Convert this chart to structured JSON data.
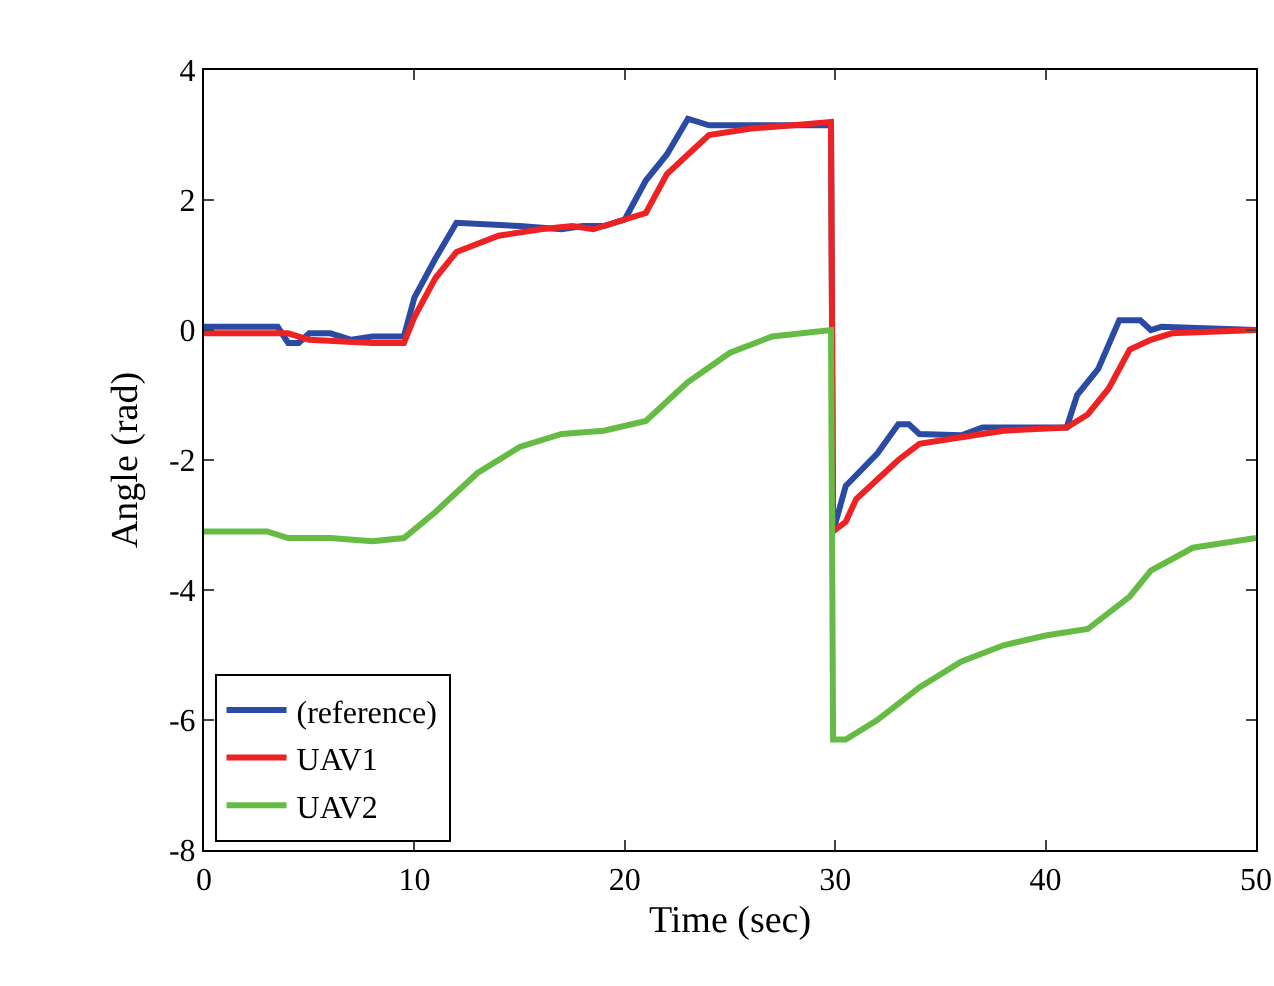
{
  "chart_data": {
    "type": "line",
    "xlabel": "Time (sec)",
    "ylabel": "Angle (rad)",
    "xlim": [
      0,
      50
    ],
    "xticks": [
      0,
      10,
      20,
      30,
      40,
      50
    ],
    "ylim": [
      -8,
      4
    ],
    "yticks": [
      -8,
      -6,
      -4,
      -2,
      0,
      2,
      4
    ],
    "grid": false,
    "legend": "bottom left",
    "line_style": "solid",
    "marker": "none",
    "series": [
      {
        "name": "(reference)",
        "color": "#2b4aa3",
        "x": [
          0,
          3.5,
          4,
          4.5,
          5,
          6,
          7,
          8,
          9.5,
          10,
          11,
          12,
          15,
          17,
          18,
          19,
          20,
          21,
          22,
          23,
          23.5,
          24,
          27,
          29.8,
          29.9,
          30.5,
          32,
          33,
          33.5,
          34,
          36,
          37,
          40,
          41,
          41.5,
          42.5,
          43.5,
          44.5,
          45,
          45.5,
          50
        ],
        "values": [
          0.05,
          0.05,
          -0.2,
          -0.2,
          -0.05,
          -0.05,
          -0.15,
          -0.1,
          -0.1,
          0.5,
          1.1,
          1.65,
          1.6,
          1.55,
          1.6,
          1.6,
          1.7,
          2.3,
          2.7,
          3.25,
          3.2,
          3.15,
          3.15,
          3.15,
          -3.1,
          -2.4,
          -1.9,
          -1.45,
          -1.45,
          -1.6,
          -1.62,
          -1.5,
          -1.5,
          -1.5,
          -1.0,
          -0.6,
          0.15,
          0.15,
          0.0,
          0.05,
          0.0
        ]
      },
      {
        "name": "UAV1",
        "color": "#ee2222",
        "x": [
          0,
          4,
          5,
          8,
          9.5,
          10,
          11,
          12,
          14,
          16,
          17.5,
          18.5,
          20,
          21,
          22,
          23,
          24,
          26,
          28,
          29.8,
          29.9,
          30.5,
          31,
          33,
          34,
          36,
          38,
          41,
          42,
          43,
          44,
          45,
          46,
          50
        ],
        "values": [
          -0.05,
          -0.05,
          -0.15,
          -0.2,
          -0.2,
          0.2,
          0.8,
          1.2,
          1.45,
          1.55,
          1.6,
          1.55,
          1.7,
          1.8,
          2.4,
          2.7,
          3.0,
          3.1,
          3.15,
          3.2,
          -3.1,
          -2.95,
          -2.6,
          -2.0,
          -1.75,
          -1.65,
          -1.55,
          -1.5,
          -1.3,
          -0.9,
          -0.3,
          -0.15,
          -0.05,
          0.0
        ]
      },
      {
        "name": "UAV2",
        "color": "#66bb44",
        "x": [
          0,
          3,
          4,
          6,
          8,
          9.5,
          11,
          13,
          15,
          17,
          19,
          21,
          23,
          25,
          27,
          29.8,
          29.9,
          30.5,
          32,
          34,
          36,
          38,
          40,
          42,
          44,
          45,
          47,
          50
        ],
        "values": [
          -3.1,
          -3.1,
          -3.2,
          -3.2,
          -3.25,
          -3.2,
          -2.8,
          -2.2,
          -1.8,
          -1.6,
          -1.55,
          -1.4,
          -0.8,
          -0.35,
          -0.1,
          0.0,
          -6.3,
          -6.3,
          -6.0,
          -5.5,
          -5.1,
          -4.85,
          -4.7,
          -4.6,
          -4.1,
          -3.7,
          -3.35,
          -3.2
        ]
      }
    ]
  }
}
